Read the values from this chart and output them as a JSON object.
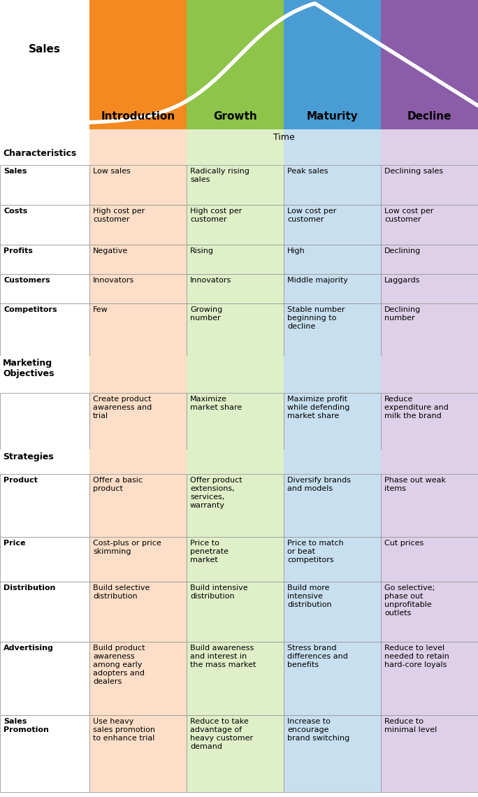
{
  "phases": [
    "Introduction",
    "Growth",
    "Maturity",
    "Decline"
  ],
  "phase_colors": [
    "#F4891F",
    "#8DC449",
    "#4A9CD4",
    "#8B5CA8"
  ],
  "phase_light_colors": [
    "#FDDEC8",
    "#DFF0C8",
    "#C8DFF0",
    "#DDD0E8"
  ],
  "sales_label": "Sales",
  "time_label": "Time",
  "characteristics_label": "Characteristics",
  "marketing_objectives_label": "Marketing\nObjectives",
  "strategies_label": "Strategies",
  "char_rows": [
    [
      "Sales",
      "Low sales",
      "Radically rising\nsales",
      "Peak sales",
      "Declining sales"
    ],
    [
      "Costs",
      "High cost per\ncustomer",
      "High cost per\ncustomer",
      "Low cost per\ncustomer",
      "Low cost per\ncustomer"
    ],
    [
      "Profits",
      "Negative",
      "Rising",
      "High",
      "Declining"
    ],
    [
      "Customers",
      "Innovators",
      "Innovators",
      "Middle majority",
      "Laggards"
    ],
    [
      "Competitors",
      "Few",
      "Growing\nnumber",
      "Stable number\nbeginning to\ndecline",
      "Declining\nnumber"
    ]
  ],
  "marketing_rows": [
    [
      "",
      "Create product\nawareness and\ntrial",
      "Maximize\nmarket share",
      "Maximize profit\nwhile defending\nmarket share",
      "Reduce\nexpenditure and\nmilk the brand"
    ]
  ],
  "strategy_rows": [
    [
      "Product",
      "Offer a basic\nproduct",
      "Offer product\nextensions,\nservices,\nwarranty",
      "Diversify brands\nand models",
      "Phase out weak\nitems"
    ],
    [
      "Price",
      "Cost-plus or price\nskimming",
      "Price to\npenetrate\nmarket",
      "Price to match\nor beat\ncompetitors",
      "Cut prices"
    ],
    [
      "Distribution",
      "Build selective\ndistribution",
      "Build intensive\ndistribution",
      "Build more\nintensive\ndistribution",
      "Go selective;\nphase out\nunprofitable\noutlets"
    ],
    [
      "Advertising",
      "Build product\nawareness\namong early\nadopters and\ndealers",
      "Build awareness\nand interest in\nthe mass market",
      "Stress brand\ndifferences and\nbenefits",
      "Reduce to level\nneeded to retain\nhard-core loyals"
    ],
    [
      "Sales\nPromotion",
      "Use heavy\nsales promotion\nto enhance trial",
      "Reduce to take\nadvantage of\nheavy customer\ndemand",
      "Increase to\nencourage\nbrand switching",
      "Reduce to\nminimal level"
    ]
  ],
  "bg_color": "#FFFFFF",
  "border_color": "#999999"
}
